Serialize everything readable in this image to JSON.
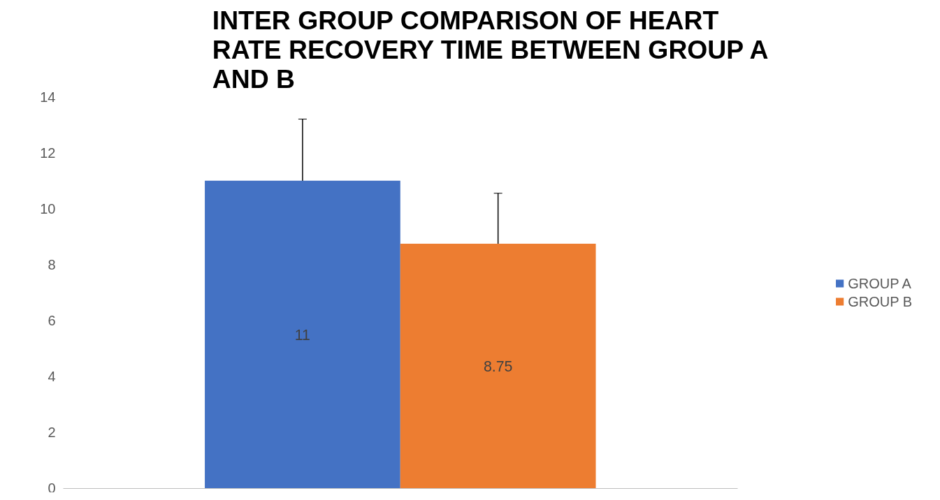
{
  "chart_data": {
    "type": "bar",
    "title": "INTER GROUP COMPARISON OF HEART RATE RECOVERY TIME BETWEEN GROUP A AND B",
    "categories": [
      null
    ],
    "series": [
      {
        "name": "GROUP A",
        "color": "#4472c4",
        "values": [
          11
        ],
        "errors": [
          2.2
        ]
      },
      {
        "name": "GROUP B",
        "color": "#ed7d31",
        "values": [
          8.75
        ],
        "errors": [
          1.8
        ]
      }
    ],
    "ylim": [
      0,
      14
    ],
    "yticks": [
      0,
      2,
      4,
      6,
      8,
      10,
      12,
      14
    ],
    "grid": false,
    "legend": "right",
    "data_labels": true
  }
}
